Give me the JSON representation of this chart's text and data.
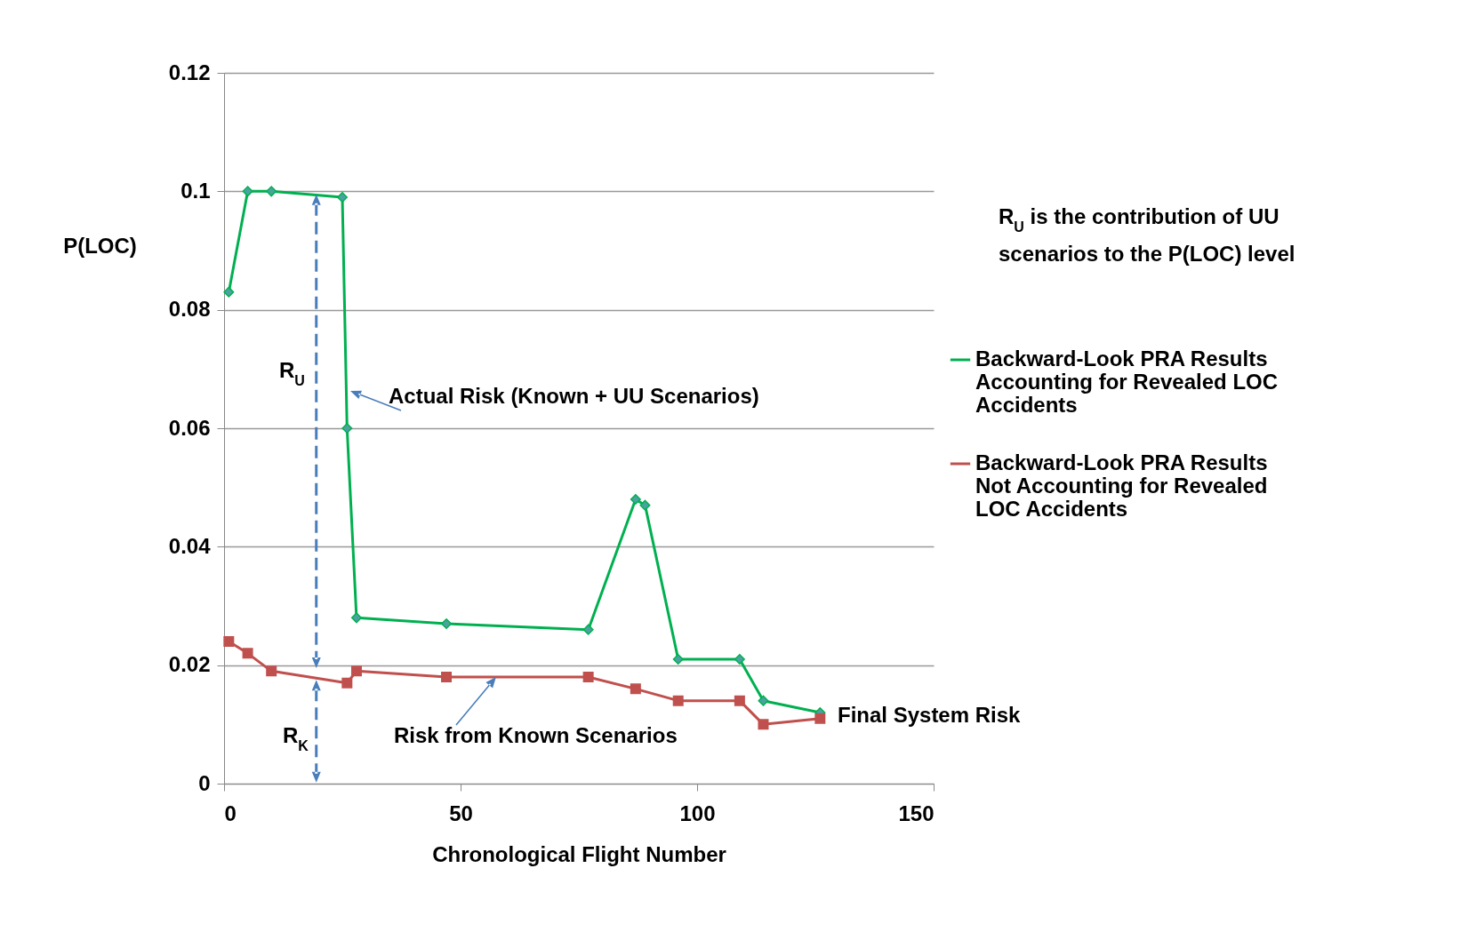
{
  "chart_data": {
    "type": "line",
    "xlabel": "Chronological Flight Number",
    "ylabel": "P(LOC)",
    "xlim": [
      0,
      150
    ],
    "xticks": [
      0,
      50,
      100,
      150
    ],
    "ylim": [
      0,
      0.12
    ],
    "yticks": [
      0,
      0.02,
      0.04,
      0.06,
      0.08,
      0.1,
      0.12
    ],
    "grid": "y",
    "legend": "right",
    "series": [
      {
        "name": "Backward-Look PRA Results Accounting for Revealed LOC Accidents",
        "color": "#00b050",
        "marker": "diamond",
        "x": [
          1,
          5,
          10,
          25,
          26,
          28,
          47,
          77,
          87,
          89,
          96,
          109,
          114,
          126
        ],
        "values": [
          0.083,
          0.1,
          0.1,
          0.099,
          0.06,
          0.028,
          0.027,
          0.026,
          0.048,
          0.047,
          0.021,
          0.021,
          0.014,
          0.012
        ]
      },
      {
        "name": "Backward-Look PRA Results Not Accounting for Revealed LOC Accidents",
        "color": "#c0504d",
        "marker": "square",
        "x": [
          1,
          5,
          10,
          26,
          28,
          47,
          77,
          87,
          96,
          109,
          114,
          126
        ],
        "values": [
          0.024,
          0.022,
          0.019,
          0.017,
          0.019,
          0.018,
          0.018,
          0.016,
          0.014,
          0.014,
          0.01,
          0.011
        ]
      }
    ],
    "annotations": [
      "R$_{U}$ is the contribution of UU scenarios to the P(LOC) level",
      "R$_{U}$",
      "R$_{K}$",
      "Actual Risk (Known + UU Scenarios)",
      {
        "text": "Risk from Known Scenarios",
        "x": 57.5,
        "y": 0.018
      },
      "Final System Risk"
    ]
  }
}
